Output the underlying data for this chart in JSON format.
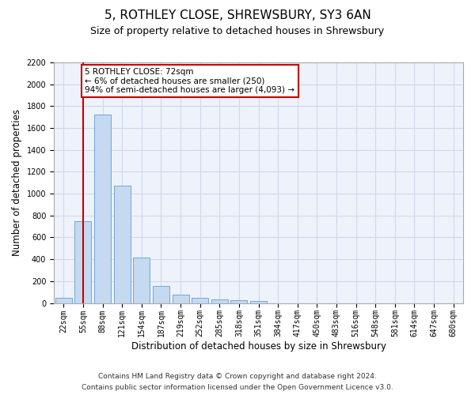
{
  "title": "5, ROTHLEY CLOSE, SHREWSBURY, SY3 6AN",
  "subtitle": "Size of property relative to detached houses in Shrewsbury",
  "xlabel": "Distribution of detached houses by size in Shrewsbury",
  "ylabel": "Number of detached properties",
  "footer_line1": "Contains HM Land Registry data © Crown copyright and database right 2024.",
  "footer_line2": "Contains public sector information licensed under the Open Government Licence v3.0.",
  "bar_labels": [
    "22sqm",
    "55sqm",
    "88sqm",
    "121sqm",
    "154sqm",
    "187sqm",
    "219sqm",
    "252sqm",
    "285sqm",
    "318sqm",
    "351sqm",
    "384sqm",
    "417sqm",
    "450sqm",
    "483sqm",
    "516sqm",
    "548sqm",
    "581sqm",
    "614sqm",
    "647sqm",
    "680sqm"
  ],
  "bar_values": [
    50,
    750,
    1720,
    1070,
    415,
    155,
    75,
    45,
    35,
    25,
    20,
    0,
    0,
    0,
    0,
    0,
    0,
    0,
    0,
    0,
    0
  ],
  "bar_color": "#c5d9f1",
  "bar_edge_color": "#6fa8d8",
  "vline_x": 1.0,
  "vline_color": "#cc0000",
  "annotation_text": "5 ROTHLEY CLOSE: 72sqm\n← 6% of detached houses are smaller (250)\n94% of semi-detached houses are larger (4,093) →",
  "annotation_box_color": "#ffffff",
  "annotation_box_edge": "#cc0000",
  "ylim": [
    0,
    2200
  ],
  "yticks": [
    0,
    200,
    400,
    600,
    800,
    1000,
    1200,
    1400,
    1600,
    1800,
    2000,
    2200
  ],
  "grid_color": "#d0d8e8",
  "bg_color": "#eef2fa",
  "title_fontsize": 11,
  "subtitle_fontsize": 9,
  "axis_fontsize": 8.5,
  "tick_fontsize": 7,
  "footer_fontsize": 6.5,
  "annot_fontsize": 7.5
}
